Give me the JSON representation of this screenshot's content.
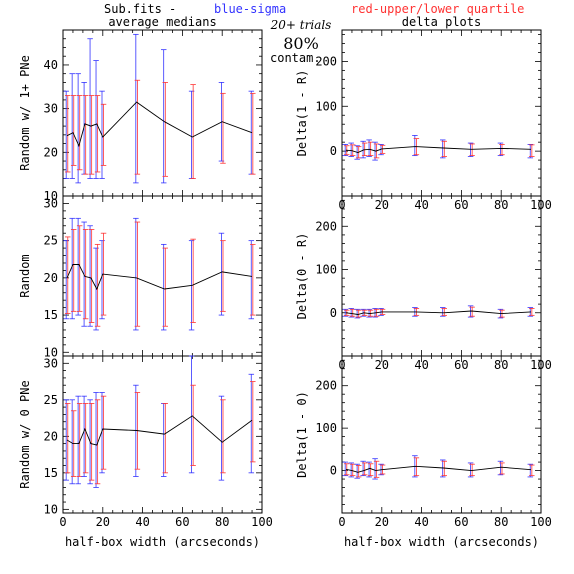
{
  "header": {
    "prefix": "Sub.fits  -",
    "blue": "blue-sigma",
    "red": "red-upper/lower quartile",
    "blue_color": "#3333ff",
    "red_color": "#ff3333"
  },
  "annotations": {
    "trials": "20+ trials",
    "percent": "80%",
    "contam": "contam."
  },
  "chart_data": [
    {
      "id": "p11",
      "type": "line",
      "col": 0,
      "row": 0,
      "title": "average medians",
      "ylabel": "Random w/ 1+ PNe",
      "xlabel": "",
      "xlim": [
        0,
        100
      ],
      "ylim": [
        10,
        48
      ],
      "xticks": [
        0,
        20,
        40,
        60,
        80,
        100
      ],
      "yticks": [
        10,
        20,
        30,
        40
      ],
      "show_xtick_labels": false,
      "x": [
        2,
        5,
        8,
        11,
        14,
        17,
        20,
        37,
        51,
        65,
        80,
        95
      ],
      "y": [
        23.8,
        24.5,
        21.5,
        26.5,
        26,
        26.5,
        23.5,
        31.5,
        27,
        23.5,
        27,
        24.5
      ],
      "sigma_lo": [
        14,
        14,
        13,
        15,
        14,
        14,
        14,
        13,
        13,
        14,
        18,
        15
      ],
      "sigma_hi": [
        34,
        38,
        38,
        36,
        46,
        41,
        34,
        47,
        43.5,
        34,
        36,
        34
      ],
      "q_lo": [
        15.5,
        17,
        16,
        15,
        15,
        15.5,
        17,
        15,
        14.5,
        14,
        17.5,
        15
      ],
      "q_hi": [
        33,
        33,
        33,
        33,
        33,
        33,
        31,
        36.5,
        36,
        35.5,
        33.5,
        33.5
      ]
    },
    {
      "id": "p12",
      "type": "line",
      "col": 1,
      "row": 0,
      "title": "delta plots",
      "ylabel": "Delta(1 - R)",
      "xlabel": "",
      "xlim": [
        0,
        100
      ],
      "ylim": [
        -100,
        270
      ],
      "xticks": [
        0,
        20,
        40,
        60,
        80,
        100
      ],
      "yticks": [
        0,
        100,
        200
      ],
      "show_xtick_labels": true,
      "x": [
        2,
        5,
        8,
        11,
        14,
        17,
        20,
        37,
        51,
        65,
        80,
        95
      ],
      "y": [
        2,
        1,
        -3,
        3,
        4,
        0,
        5,
        10,
        7,
        4,
        6,
        4
      ],
      "sigma_lo": [
        -10,
        -12,
        -18,
        -15,
        -12,
        -20,
        -8,
        -10,
        -15,
        -12,
        -10,
        -15
      ],
      "sigma_hi": [
        15,
        18,
        12,
        22,
        25,
        20,
        15,
        35,
        25,
        18,
        18,
        15
      ],
      "q_lo": [
        -8,
        -10,
        -15,
        -10,
        -10,
        -15,
        -5,
        -8,
        -12,
        -10,
        -8,
        -12
      ],
      "q_hi": [
        12,
        14,
        10,
        18,
        20,
        16,
        13,
        28,
        22,
        16,
        15,
        14
      ]
    },
    {
      "id": "p21",
      "type": "line",
      "col": 0,
      "row": 1,
      "title": "",
      "ylabel": "Random",
      "xlabel": "",
      "xlim": [
        0,
        100
      ],
      "ylim": [
        9.5,
        31
      ],
      "xticks": [
        0,
        20,
        40,
        60,
        80,
        100
      ],
      "yticks": [
        10,
        15,
        20,
        25,
        30
      ],
      "show_xtick_labels": false,
      "x": [
        2,
        5,
        8,
        11,
        14,
        17,
        20,
        37,
        51,
        65,
        80,
        95
      ],
      "y": [
        20,
        21.8,
        21.8,
        20.2,
        20,
        18.5,
        20.5,
        20,
        18.5,
        19,
        20.8,
        20.2
      ],
      "sigma_lo": [
        14.5,
        14.5,
        15,
        13.5,
        13.5,
        13,
        14.5,
        13,
        13,
        13,
        15,
        14.5
      ],
      "sigma_hi": [
        25,
        28,
        28,
        27.5,
        27,
        24,
        25,
        28,
        24.5,
        25,
        26,
        25
      ],
      "q_lo": [
        15.2,
        15.5,
        15.5,
        14.5,
        14,
        13.5,
        15,
        13.5,
        13.5,
        14,
        15.5,
        15
      ],
      "q_hi": [
        25.5,
        26.5,
        27,
        26.5,
        26.5,
        24.5,
        26,
        27.5,
        24,
        25.2,
        25,
        24.5
      ]
    },
    {
      "id": "p22",
      "type": "line",
      "col": 1,
      "row": 1,
      "title": "",
      "ylabel": "Delta(0 - R)",
      "xlabel": "",
      "xlim": [
        0,
        100
      ],
      "ylim": [
        -100,
        270
      ],
      "xticks": [
        0,
        20,
        40,
        60,
        80,
        100
      ],
      "yticks": [
        0,
        100,
        200
      ],
      "show_xtick_labels": true,
      "x": [
        2,
        5,
        8,
        11,
        14,
        17,
        20,
        37,
        51,
        65,
        80,
        95
      ],
      "y": [
        0,
        -2,
        -4,
        0,
        -2,
        0,
        2,
        2,
        0,
        4,
        -2,
        2
      ],
      "sigma_lo": [
        -8,
        -10,
        -12,
        -8,
        -10,
        -10,
        -6,
        -8,
        -8,
        -10,
        -12,
        -8
      ],
      "sigma_hi": [
        8,
        10,
        8,
        8,
        8,
        10,
        10,
        12,
        12,
        16,
        8,
        12
      ],
      "q_lo": [
        -6,
        -8,
        -10,
        -6,
        -8,
        -8,
        -4,
        -6,
        -6,
        -8,
        -10,
        -6
      ],
      "q_hi": [
        6,
        8,
        6,
        6,
        6,
        8,
        8,
        10,
        10,
        13,
        6,
        10
      ]
    },
    {
      "id": "p31",
      "type": "line",
      "col": 0,
      "row": 2,
      "title": "",
      "ylabel": "Random w/ 0 PNe",
      "xlabel": "half-box width (arcseconds)",
      "xlim": [
        0,
        100
      ],
      "ylim": [
        9.5,
        31
      ],
      "xticks": [
        0,
        20,
        40,
        60,
        80,
        100
      ],
      "yticks": [
        10,
        15,
        20,
        25,
        30
      ],
      "show_xtick_labels": true,
      "x": [
        2,
        5,
        8,
        11,
        14,
        17,
        20,
        37,
        51,
        65,
        80,
        95
      ],
      "y": [
        19.5,
        19,
        19,
        21,
        19,
        18.8,
        21,
        20.8,
        20.3,
        22.8,
        19.2,
        22.2
      ],
      "sigma_lo": [
        14,
        13.5,
        13.5,
        14.5,
        13.5,
        13,
        15,
        14.5,
        14.5,
        15,
        14,
        15
      ],
      "sigma_hi": [
        25,
        25,
        25.5,
        25.5,
        25,
        26,
        26,
        27,
        24.5,
        31,
        25.5,
        28.5
      ],
      "q_lo": [
        15,
        14.5,
        14.5,
        15,
        14,
        13.5,
        15.5,
        15.5,
        15,
        16,
        15,
        16.5
      ],
      "q_hi": [
        24.5,
        23.5,
        24.5,
        24.5,
        24.5,
        25,
        25.5,
        26,
        24.5,
        27,
        25,
        27.5
      ]
    },
    {
      "id": "p32",
      "type": "line",
      "col": 1,
      "row": 2,
      "title": "",
      "ylabel": "Delta(1 - 0)",
      "xlabel": "half-box width (arcseconds)",
      "xlim": [
        0,
        100
      ],
      "ylim": [
        -100,
        270
      ],
      "xticks": [
        0,
        20,
        40,
        60,
        80,
        100
      ],
      "yticks": [
        0,
        100,
        200
      ],
      "show_xtick_labels": true,
      "x": [
        2,
        5,
        8,
        11,
        14,
        17,
        20,
        37,
        51,
        65,
        80,
        95
      ],
      "y": [
        3,
        0,
        -4,
        0,
        5,
        0,
        2,
        10,
        6,
        0,
        8,
        2
      ],
      "sigma_lo": [
        -12,
        -15,
        -18,
        -12,
        -15,
        -20,
        -10,
        -15,
        -15,
        -15,
        -10,
        -15
      ],
      "sigma_hi": [
        20,
        18,
        15,
        22,
        20,
        28,
        15,
        35,
        25,
        18,
        22,
        15
      ],
      "q_lo": [
        -10,
        -12,
        -15,
        -10,
        -12,
        -16,
        -8,
        -12,
        -12,
        -12,
        -8,
        -12
      ],
      "q_hi": [
        16,
        15,
        12,
        18,
        16,
        22,
        13,
        30,
        22,
        15,
        18,
        13
      ]
    }
  ]
}
